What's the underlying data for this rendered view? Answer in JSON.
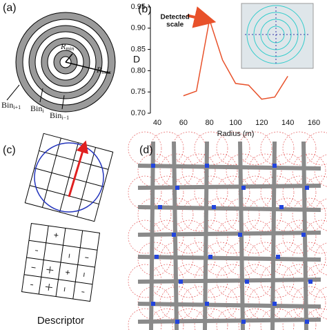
{
  "panel_a": {
    "label": "(a)",
    "r_min": {
      "base": "R",
      "sub": "min"
    },
    "r_max": {
      "base": "R",
      "sub": "max"
    },
    "bins": [
      {
        "base": "Bin",
        "sub": "i+1"
      },
      {
        "base": "Bin",
        "sub": "i"
      },
      {
        "base": "Bin",
        "sub": "i−1"
      }
    ]
  },
  "panel_b": {
    "label": "(b)"
  },
  "chart_data": {
    "type": "line",
    "x_label": "Radius (m)",
    "y_label": "D",
    "annotation": "Detected scale",
    "x": [
      60,
      70,
      80,
      90,
      100,
      110,
      120,
      130,
      140
    ],
    "series": [
      {
        "color": "#e8512a",
        "values": [
          0.741,
          0.752,
          0.92,
          0.825,
          0.77,
          0.766,
          0.733,
          0.738,
          0.787
        ]
      }
    ],
    "xlim": [
      40,
      160
    ],
    "xticks": [
      40,
      60,
      80,
      100,
      120,
      140,
      160
    ],
    "ylim": [
      0.7,
      0.95
    ],
    "yticks": [
      {
        "value": 0.7,
        "label": "0.70"
      },
      0.75,
      {
        "value": 0.8,
        "label": "0.80"
      },
      0.85,
      {
        "value": 0.9,
        "label": "0.90"
      },
      0.95
    ]
  },
  "panel_c": {
    "label": "(c)",
    "caption": "Descriptor"
  },
  "panel_d": {
    "label": "(d)"
  }
}
